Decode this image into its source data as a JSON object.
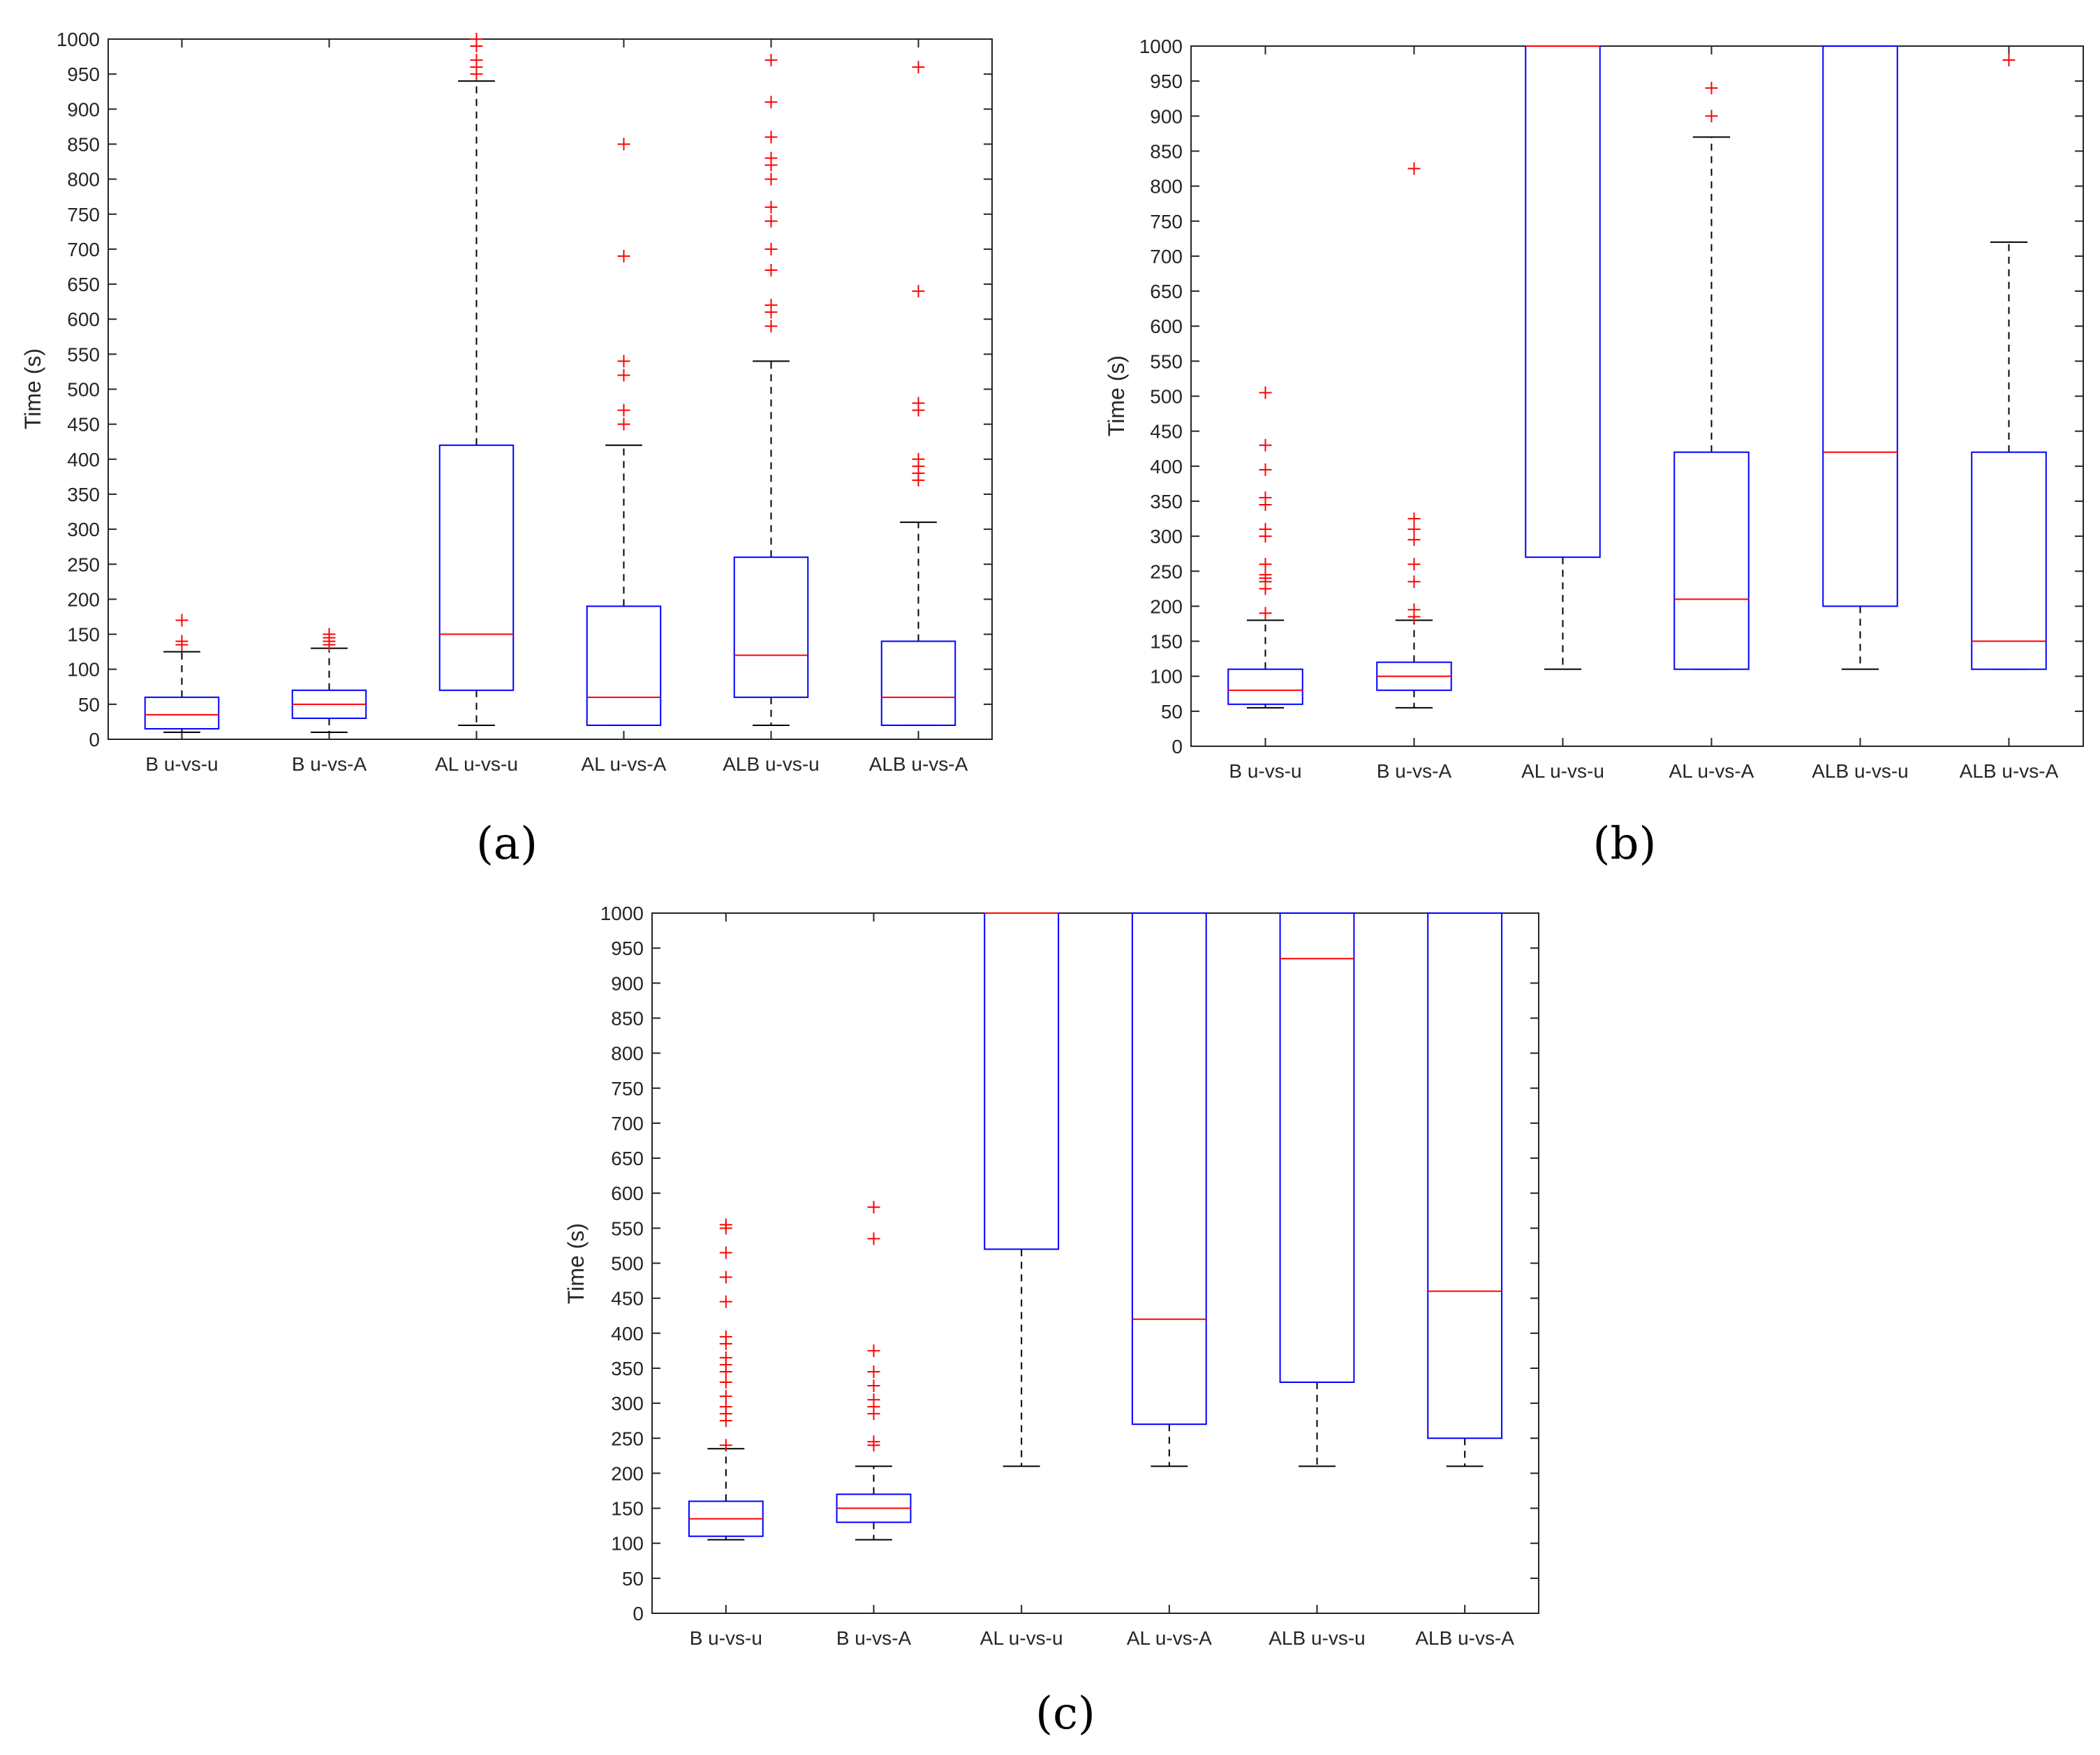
{
  "chart_data": [
    {
      "type": "box",
      "panel_label": "(a)",
      "ylabel": "Time (s)",
      "ylim": [
        0,
        1000
      ],
      "yticks": [
        0,
        50,
        100,
        150,
        200,
        250,
        300,
        350,
        400,
        450,
        500,
        550,
        600,
        650,
        700,
        750,
        800,
        850,
        900,
        950,
        1000
      ],
      "categories": [
        "B u-vs-u",
        "B u-vs-A",
        "AL u-vs-u",
        "AL u-vs-A",
        "ALB u-vs-u",
        "ALB u-vs-A"
      ],
      "boxes": [
        {
          "q1": 15,
          "median": 35,
          "q3": 60,
          "whisker_low": 10,
          "whisker_high": 125,
          "outliers": [
            135,
            140,
            170
          ]
        },
        {
          "q1": 30,
          "median": 50,
          "q3": 70,
          "whisker_low": 10,
          "whisker_high": 130,
          "outliers": [
            135,
            140,
            145,
            150
          ]
        },
        {
          "q1": 70,
          "median": 150,
          "q3": 420,
          "whisker_low": 20,
          "whisker_high": 940,
          "outliers": [
            950,
            960,
            970,
            990,
            1000
          ]
        },
        {
          "q1": 20,
          "median": 60,
          "q3": 190,
          "whisker_low": 20,
          "whisker_high": 420,
          "outliers": [
            450,
            470,
            520,
            540,
            690,
            850
          ]
        },
        {
          "q1": 60,
          "median": 120,
          "q3": 260,
          "whisker_low": 20,
          "whisker_high": 540,
          "outliers": [
            590,
            610,
            620,
            670,
            700,
            740,
            760,
            800,
            820,
            830,
            860,
            910,
            970
          ]
        },
        {
          "q1": 20,
          "median": 60,
          "q3": 140,
          "whisker_low": 20,
          "whisker_high": 310,
          "outliers": [
            370,
            380,
            390,
            400,
            470,
            480,
            640,
            960
          ]
        }
      ]
    },
    {
      "type": "box",
      "panel_label": "(b)",
      "ylabel": "Time (s)",
      "ylim": [
        0,
        1000
      ],
      "yticks": [
        0,
        50,
        100,
        150,
        200,
        250,
        300,
        350,
        400,
        450,
        500,
        550,
        600,
        650,
        700,
        750,
        800,
        850,
        900,
        950,
        1000
      ],
      "categories": [
        "B u-vs-u",
        "B u-vs-A",
        "AL u-vs-u",
        "AL u-vs-A",
        "ALB u-vs-u",
        "ALB u-vs-A"
      ],
      "boxes": [
        {
          "q1": 60,
          "median": 80,
          "q3": 110,
          "whisker_low": 55,
          "whisker_high": 180,
          "outliers": [
            190,
            225,
            235,
            240,
            245,
            260,
            300,
            310,
            345,
            355,
            395,
            430,
            505
          ]
        },
        {
          "q1": 80,
          "median": 100,
          "q3": 120,
          "whisker_low": 55,
          "whisker_high": 180,
          "outliers": [
            185,
            195,
            235,
            260,
            295,
            310,
            325,
            825
          ]
        },
        {
          "q1": 270,
          "median": 1000,
          "q3": 1000,
          "whisker_low": 110,
          "whisker_high": 1000,
          "outliers": []
        },
        {
          "q1": 110,
          "median": 210,
          "q3": 420,
          "whisker_low": 110,
          "whisker_high": 870,
          "outliers": [
            900,
            940
          ]
        },
        {
          "q1": 200,
          "median": 420,
          "q3": 1000,
          "whisker_low": 110,
          "whisker_high": 1000,
          "outliers": []
        },
        {
          "q1": 110,
          "median": 150,
          "q3": 420,
          "whisker_low": 110,
          "whisker_high": 720,
          "outliers": [
            980
          ]
        }
      ]
    },
    {
      "type": "box",
      "panel_label": "(c)",
      "ylabel": "Time (s)",
      "ylim": [
        0,
        1000
      ],
      "yticks": [
        0,
        50,
        100,
        150,
        200,
        250,
        300,
        350,
        400,
        450,
        500,
        550,
        600,
        650,
        700,
        750,
        800,
        850,
        900,
        950,
        1000
      ],
      "categories": [
        "B u-vs-u",
        "B u-vs-A",
        "AL u-vs-u",
        "AL u-vs-A",
        "ALB u-vs-u",
        "ALB u-vs-A"
      ],
      "boxes": [
        {
          "q1": 110,
          "median": 135,
          "q3": 160,
          "whisker_low": 105,
          "whisker_high": 235,
          "outliers": [
            240,
            275,
            285,
            295,
            310,
            330,
            345,
            355,
            365,
            385,
            395,
            445,
            480,
            515,
            550,
            555
          ]
        },
        {
          "q1": 130,
          "median": 150,
          "q3": 170,
          "whisker_low": 105,
          "whisker_high": 210,
          "outliers": [
            240,
            245,
            285,
            295,
            305,
            325,
            345,
            375,
            535,
            580
          ]
        },
        {
          "q1": 520,
          "median": 1000,
          "q3": 1000,
          "whisker_low": 210,
          "whisker_high": 1000,
          "outliers": []
        },
        {
          "q1": 270,
          "median": 420,
          "q3": 1000,
          "whisker_low": 210,
          "whisker_high": 1000,
          "outliers": []
        },
        {
          "q1": 330,
          "median": 935,
          "q3": 1000,
          "whisker_low": 210,
          "whisker_high": 1000,
          "outliers": []
        },
        {
          "q1": 250,
          "median": 460,
          "q3": 1000,
          "whisker_low": 210,
          "whisker_high": 1000,
          "outliers": []
        }
      ]
    }
  ],
  "colors": {
    "box": "#0000ff",
    "median": "#ff0000",
    "outlier": "#ff0000",
    "whisker": "#000000",
    "axis": "#262626"
  }
}
